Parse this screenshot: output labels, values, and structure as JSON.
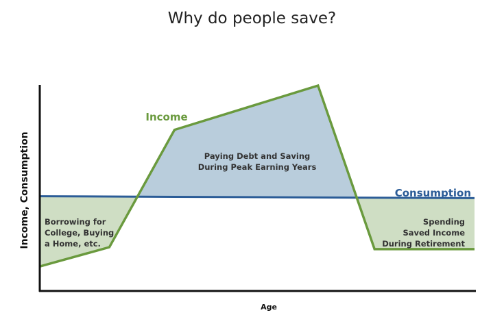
{
  "slide": {
    "title": "Why do people save?"
  },
  "chart_data": {
    "type": "line",
    "title": "",
    "xlabel": "Age",
    "ylabel": "Income, Consumption",
    "grid": false,
    "xlim": [
      0,
      100
    ],
    "ylim": [
      0,
      100
    ],
    "series": [
      {
        "name": "Income",
        "x": [
          0,
          16,
          31,
          64,
          77,
          100
        ],
        "y": [
          6,
          16,
          77,
          100,
          15,
          15
        ],
        "color": "#6a9a3e"
      },
      {
        "name": "Consumption",
        "x": [
          0,
          100
        ],
        "y": [
          42.5,
          41.5
        ],
        "color": "#2b5c97"
      }
    ],
    "regions": [
      {
        "name": "borrowing",
        "fill": "#cfdec4",
        "lines": [
          "Borrowing for",
          "College, Buying",
          "a Home, etc."
        ]
      },
      {
        "name": "saving",
        "fill": "#b9cddc",
        "lines": [
          "Paying Debt and Saving",
          "During Peak Earning Years"
        ]
      },
      {
        "name": "retirement",
        "fill": "#cfdec4",
        "lines": [
          "Spending",
          "Saved Income",
          "During Retirement"
        ]
      }
    ],
    "colors": {
      "axis": "#111111",
      "income": "#6a9a3e",
      "consumption": "#2b5c97",
      "annotation": "#333333"
    }
  }
}
